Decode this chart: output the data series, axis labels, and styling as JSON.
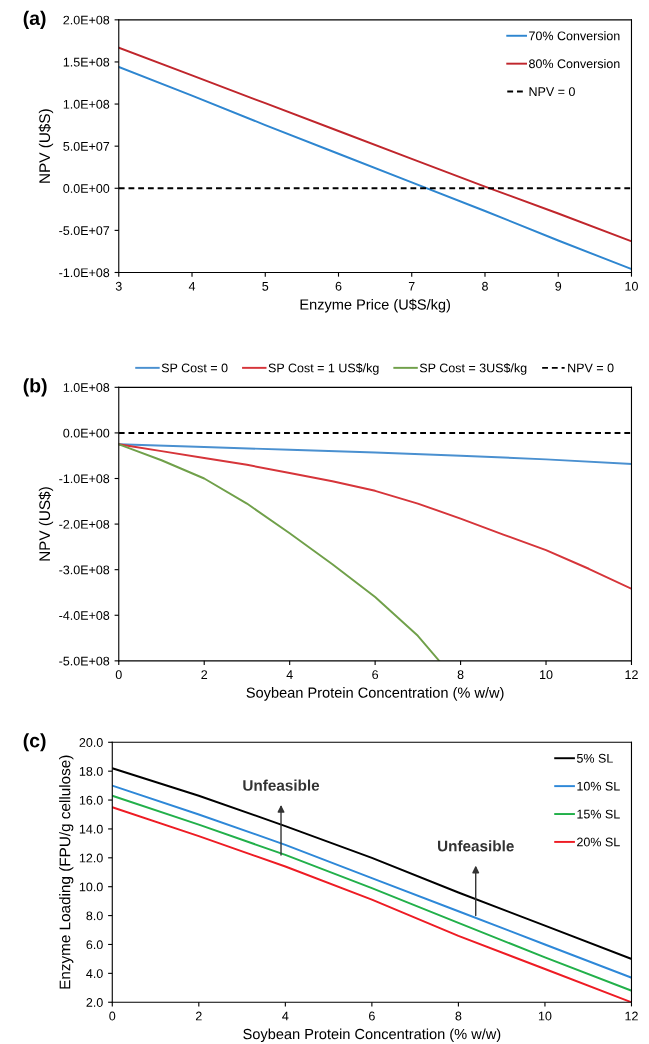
{
  "chart_data": [
    {
      "type": "line",
      "title": "(a)",
      "xlabel": "Enzyme Price (U$S/kg)",
      "ylabel": "NPV (U$S)",
      "x": [
        3,
        4,
        5,
        6,
        7,
        8,
        9,
        10
      ],
      "series": [
        {
          "name": "70% Conversion",
          "color": "#2e86d0",
          "values": [
            144000000,
            110000000,
            75000000,
            41000000,
            7000000,
            -27000000,
            -62000000,
            -96000000
          ]
        },
        {
          "name": "80% Conversion",
          "color": "#c0262c",
          "values": [
            167000000,
            134000000,
            101000000,
            68000000,
            35000000,
            2000000,
            -30000000,
            -63000000
          ]
        }
      ],
      "ref_lines": [
        {
          "axis": "y",
          "value": 0,
          "label": "NPV = 0",
          "color": "#000000",
          "line_style": "dashed"
        }
      ],
      "xlim": [
        3,
        10
      ],
      "xticks": [
        3,
        4,
        5,
        6,
        7,
        8,
        9,
        10
      ],
      "ylim": [
        -100000000,
        200000000
      ],
      "yticks": [
        {
          "value": -100000000,
          "label": "-1.0E+08"
        },
        {
          "value": -50000000,
          "label": "-5.0E+07"
        },
        {
          "value": 0,
          "label": "0.0E+00"
        },
        {
          "value": 50000000,
          "label": "5.0E+07"
        },
        {
          "value": 100000000,
          "label": "1.0E+08"
        },
        {
          "value": 150000000,
          "label": "1.5E+08"
        },
        {
          "value": 200000000,
          "label": "2.0E+08"
        }
      ],
      "legend": "top right",
      "grid": false
    },
    {
      "type": "line",
      "title": "(b)",
      "xlabel": "Soybean Protein Concentration (% w/w)",
      "ylabel": "NPV (US$)",
      "series": [
        {
          "name": "SP Cost = 0",
          "color": "#4a90d0",
          "x": [
            0,
            2,
            4,
            6,
            8,
            10,
            12
          ],
          "values": [
            -25000000,
            -31000000,
            -37000000,
            -43000000,
            -50000000,
            -58000000,
            -68000000
          ]
        },
        {
          "name": "SP Cost = 1 US$/kg",
          "color": "#d6353a",
          "x": [
            0,
            1,
            2,
            3,
            4,
            5,
            6,
            7,
            8,
            9,
            10,
            11,
            12
          ],
          "values": [
            -25000000,
            -40000000,
            -55000000,
            -70000000,
            -88000000,
            -106000000,
            -127000000,
            -155000000,
            -188000000,
            -223000000,
            -257000000,
            -298000000,
            -342000000
          ]
        },
        {
          "name": "SP Cost = 3US$/kg",
          "color": "#70a04a",
          "x": [
            0,
            1,
            2,
            3,
            4,
            5,
            6,
            7,
            7.5
          ],
          "values": [
            -25000000,
            -60000000,
            -100000000,
            -155000000,
            -220000000,
            -288000000,
            -360000000,
            -445000000,
            -500000000
          ]
        }
      ],
      "ref_lines": [
        {
          "axis": "y",
          "value": 0,
          "label": "NPV = 0",
          "color": "#000000",
          "line_style": "dashed"
        }
      ],
      "xlim": [
        0,
        12
      ],
      "xticks": [
        0,
        2,
        4,
        6,
        8,
        10,
        12
      ],
      "ylim": [
        -500000000,
        100000000
      ],
      "yticks": [
        {
          "value": -500000000,
          "label": "-5.0E+08"
        },
        {
          "value": -400000000,
          "label": "-4.0E+08"
        },
        {
          "value": -300000000,
          "label": "-3.0E+08"
        },
        {
          "value": -200000000,
          "label": "-2.0E+08"
        },
        {
          "value": -100000000,
          "label": "-1.0E+08"
        },
        {
          "value": 0,
          "label": "0.0E+00"
        },
        {
          "value": 100000000,
          "label": "1.0E+08"
        }
      ],
      "legend": "top",
      "grid": false
    },
    {
      "type": "line",
      "title": "(c)",
      "xlabel": "Soybean Protein Concentration (% w/w)",
      "ylabel": "Enzyme Loading (FPU/g cellulose)",
      "x": [
        0,
        2,
        4,
        6,
        8,
        10,
        12
      ],
      "series": [
        {
          "name": "5% SL",
          "color": "#000000",
          "values": [
            18.2,
            16.3,
            14.2,
            12.0,
            9.6,
            7.3,
            5.0
          ]
        },
        {
          "name": "10% SL",
          "color": "#2e88d8",
          "values": [
            17.0,
            15.0,
            12.9,
            10.6,
            8.3,
            6.0,
            3.7
          ]
        },
        {
          "name": "15% SL",
          "color": "#22b04a",
          "values": [
            16.3,
            14.3,
            12.2,
            9.9,
            7.5,
            5.1,
            2.8
          ]
        },
        {
          "name": "20% SL",
          "color": "#ee1c24",
          "values": [
            15.5,
            13.5,
            11.4,
            9.1,
            6.6,
            4.3,
            2.0
          ]
        }
      ],
      "annotations": [
        {
          "text": "Unfeasible",
          "x": 3.9,
          "y": 12.2
        },
        {
          "text": "Unfeasible",
          "x": 8.4,
          "y": 8.0
        }
      ],
      "xlim": [
        0,
        12
      ],
      "xticks": [
        0,
        2,
        4,
        6,
        8,
        10,
        12
      ],
      "ylim": [
        2,
        20
      ],
      "yticks": [
        {
          "value": 2,
          "label": "2.0"
        },
        {
          "value": 4,
          "label": "4.0"
        },
        {
          "value": 6,
          "label": "6.0"
        },
        {
          "value": 8,
          "label": "8.0"
        },
        {
          "value": 10,
          "label": "10.0"
        },
        {
          "value": 12,
          "label": "12.0"
        },
        {
          "value": 14,
          "label": "14.0"
        },
        {
          "value": 16,
          "label": "16.0"
        },
        {
          "value": 18,
          "label": "18.0"
        },
        {
          "value": 20,
          "label": "20.0"
        }
      ],
      "legend": "top right",
      "grid": false
    }
  ]
}
